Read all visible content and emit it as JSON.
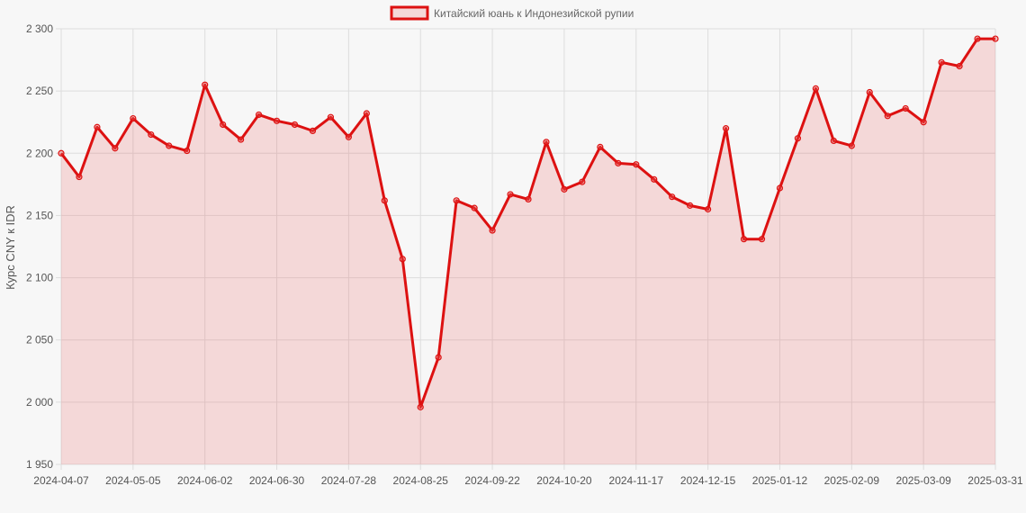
{
  "chart_data": {
    "type": "area",
    "legend": {
      "label": "Китайский юань к Индонезийской рупии",
      "position": "top-center"
    },
    "ylabel": "Курс CNY к IDR",
    "xlabel": "",
    "ylim": [
      1950,
      2300
    ],
    "y_ticks": [
      "1 950",
      "2 000",
      "2 050",
      "2 100",
      "2 150",
      "2 200",
      "2 250",
      "2 300"
    ],
    "x_ticks": [
      "2024-04-07",
      "2024-05-05",
      "2024-06-02",
      "2024-06-30",
      "2024-07-28",
      "2024-08-25",
      "2024-09-22",
      "2024-10-20",
      "2024-11-17",
      "2024-12-15",
      "2025-01-12",
      "2025-02-09",
      "2025-03-09",
      "2025-03-31"
    ],
    "grid": true,
    "colors": {
      "line": "#dd1111",
      "fill": "rgba(232,80,80,0.18)",
      "grid": "#dddddd"
    },
    "series": [
      {
        "name": "Китайский юань к Индонезийской рупии",
        "values": [
          2200,
          2181,
          2221,
          2204,
          2228,
          2215,
          2206,
          2202,
          2255,
          2223,
          2211,
          2231,
          2226,
          2223,
          2218,
          2229,
          2213,
          2232,
          2162,
          2115,
          1996,
          2036,
          2162,
          2156,
          2138,
          2167,
          2163,
          2209,
          2171,
          2177,
          2205,
          2192,
          2191,
          2179,
          2165,
          2158,
          2155,
          2220,
          2131,
          2131,
          2172,
          2212,
          2252,
          2210,
          2206,
          2249,
          2230,
          2236,
          2225,
          2273,
          2270,
          2292,
          2292
        ]
      }
    ]
  }
}
